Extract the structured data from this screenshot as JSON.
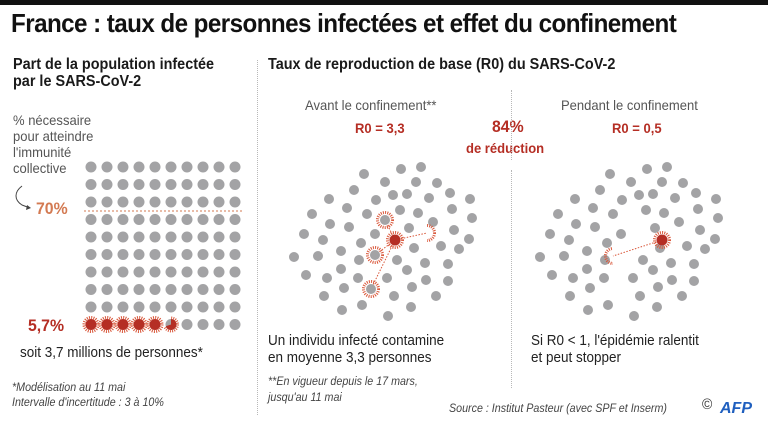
{
  "title": "France : taux de personnes infectées et effet du confinement",
  "left_panel": {
    "heading_line1": "Part de la population infectée",
    "heading_line2": "par le SARS-CoV-2",
    "note_line1": "% nécessaire",
    "note_line2": "pour atteindre",
    "note_line3": "l'immunité",
    "note_line4": "collective",
    "threshold_label": "70%",
    "infected_label": "5,7%",
    "infected_caption": "soit 3,7 millions de personnes*",
    "footnote_line1": "*Modélisation au 11 mai",
    "footnote_line2": "Intervalle d'incertitude : 3 à 10%"
  },
  "right_panel": {
    "heading": "Taux de reproduction de base (R0) du SARS-CoV-2",
    "before": {
      "label": "Avant le confinement**",
      "r0": "R0 = 3,3",
      "caption_line1": "Un individu infecté contamine",
      "caption_line2": "en moyenne 3,3 personnes"
    },
    "reduction_value": "84%",
    "reduction_label": "de réduction",
    "during": {
      "label": "Pendant le confinement",
      "r0": "R0 = 0,5",
      "caption_line1": "Si R0 < 1, l'épidémie ralentit",
      "caption_line2": "et peut stopper"
    },
    "footnote_line1": "**En vigueur depuis le 17 mars,",
    "footnote_line2": "jusqu'au 11 mai"
  },
  "source": "Source : Institut Pasteur (avec SPF et Inserm)",
  "credit_symbol": "©",
  "credit_logo": "AFP",
  "colors": {
    "dot_grey": "#a3a3a5",
    "infected_red": "#b52e24",
    "virus_ring": "#d9573a",
    "threshold_orange": "#d37a52",
    "afp_blue": "#1f5fbf"
  },
  "chart_data": {
    "type": "table",
    "population_grid": {
      "total_units": 100,
      "threshold_percent": 70,
      "infected_percent": 5.7
    },
    "r0": {
      "before_lockdown": 3.3,
      "during_lockdown": 0.5,
      "reduction_percent": 84
    }
  }
}
